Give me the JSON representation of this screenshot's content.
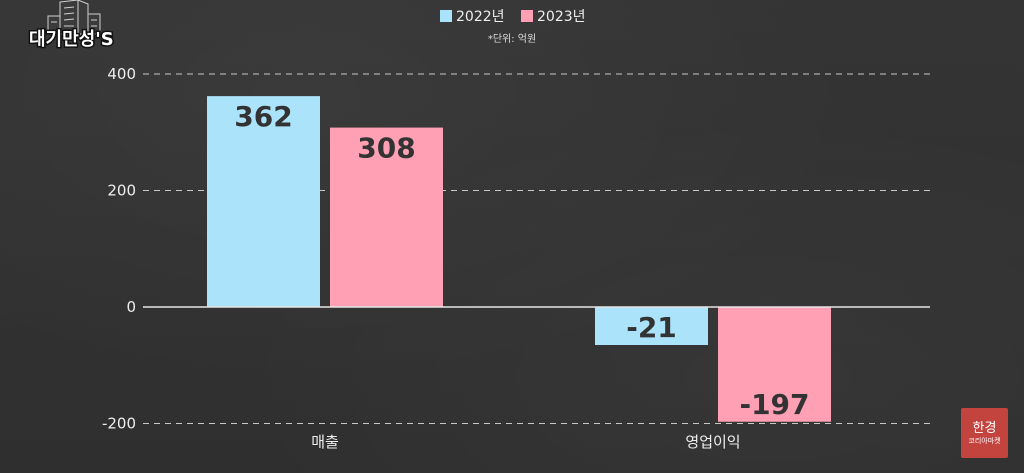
{
  "theme": {
    "background": "#313131"
  },
  "brand": {
    "logo_text": "대기만성'S"
  },
  "watermark": {
    "line1": "한경",
    "line2": "코리아마켓",
    "color": "#c3443f"
  },
  "chart_data": {
    "type": "bar",
    "categories": [
      "매출",
      "영업이익"
    ],
    "series": [
      {
        "name": "2022년",
        "values": [
          362,
          -21
        ],
        "color": "#abe3fa"
      },
      {
        "name": "2023년",
        "values": [
          308,
          -197
        ],
        "color": "#ffa0b4"
      }
    ],
    "note": "*단위: 억원",
    "yticks": [
      400,
      200,
      0,
      -200
    ],
    "ylim": [
      -200,
      400
    ],
    "grid": true,
    "legend": "top-center",
    "data_labels": true
  }
}
